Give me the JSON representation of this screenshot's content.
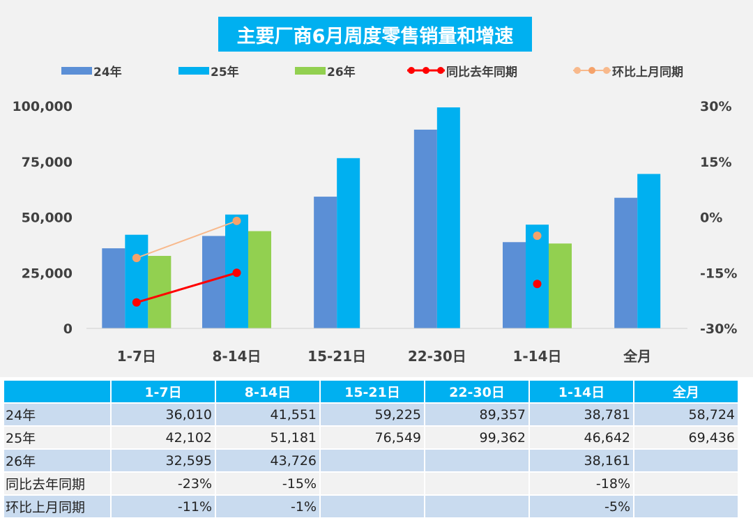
{
  "title": "主要厂商6月周度零售销量和增速",
  "colors": {
    "s24": "#5b8fd6",
    "s25": "#00b0f0",
    "s26": "#92d050",
    "yoy": "#ff0000",
    "mom": "#f8b98c",
    "mom_marker": "#f5a26a",
    "table_header": "#00b0f0",
    "table_alt": "#c9dbef"
  },
  "chart_data": {
    "type": "bar",
    "title": "主要厂商6月周度零售销量和增速",
    "categories": [
      "1-7日",
      "8-14日",
      "15-21日",
      "22-30日",
      "1-14日",
      "全月"
    ],
    "series": [
      {
        "name": "24年",
        "type": "bar",
        "axis": "left",
        "values": [
          36010,
          41551,
          59225,
          89357,
          38781,
          58724
        ]
      },
      {
        "name": "25年",
        "type": "bar",
        "axis": "left",
        "values": [
          42102,
          51181,
          76549,
          99362,
          46642,
          69436
        ]
      },
      {
        "name": "26年",
        "type": "bar",
        "axis": "left",
        "values": [
          32595,
          43726,
          null,
          null,
          38161,
          null
        ]
      },
      {
        "name": "同比去年同期",
        "type": "line",
        "axis": "right",
        "values": [
          -23,
          -15,
          null,
          null,
          -18,
          null
        ]
      },
      {
        "name": "环比上月同期",
        "type": "line",
        "axis": "right",
        "values": [
          -11,
          -1,
          null,
          null,
          -5,
          null
        ]
      }
    ],
    "y_left": {
      "min": 0,
      "max": 100000,
      "ticks": [
        0,
        25000,
        50000,
        75000,
        100000
      ],
      "tick_labels": [
        "0",
        "25,000",
        "50,000",
        "75,000",
        "100,000"
      ]
    },
    "y_right": {
      "min": -30,
      "max": 30,
      "ticks": [
        -30,
        -15,
        0,
        15,
        30
      ],
      "tick_labels": [
        "-30%",
        "-15%",
        "0%",
        "15%",
        "30%"
      ]
    },
    "legend_position": "top",
    "grid": false
  },
  "table": {
    "headers": [
      "",
      "1-7日",
      "8-14日",
      "15-21日",
      "22-30日",
      "1-14日",
      "全月"
    ],
    "rows": [
      {
        "label": "24年",
        "cells": [
          "36,010",
          "41,551",
          "59,225",
          "89,357",
          "38,781",
          "58,724"
        ]
      },
      {
        "label": "25年",
        "cells": [
          "42,102",
          "51,181",
          "76,549",
          "99,362",
          "46,642",
          "69,436"
        ]
      },
      {
        "label": "26年",
        "cells": [
          "32,595",
          "43,726",
          "",
          "",
          "38,161",
          ""
        ]
      },
      {
        "label": "同比去年同期",
        "cells": [
          "-23%",
          "-15%",
          "",
          "",
          "-18%",
          ""
        ]
      },
      {
        "label": "环比上月同期",
        "cells": [
          "-11%",
          "-1%",
          "",
          "",
          "-5%",
          ""
        ]
      }
    ]
  }
}
